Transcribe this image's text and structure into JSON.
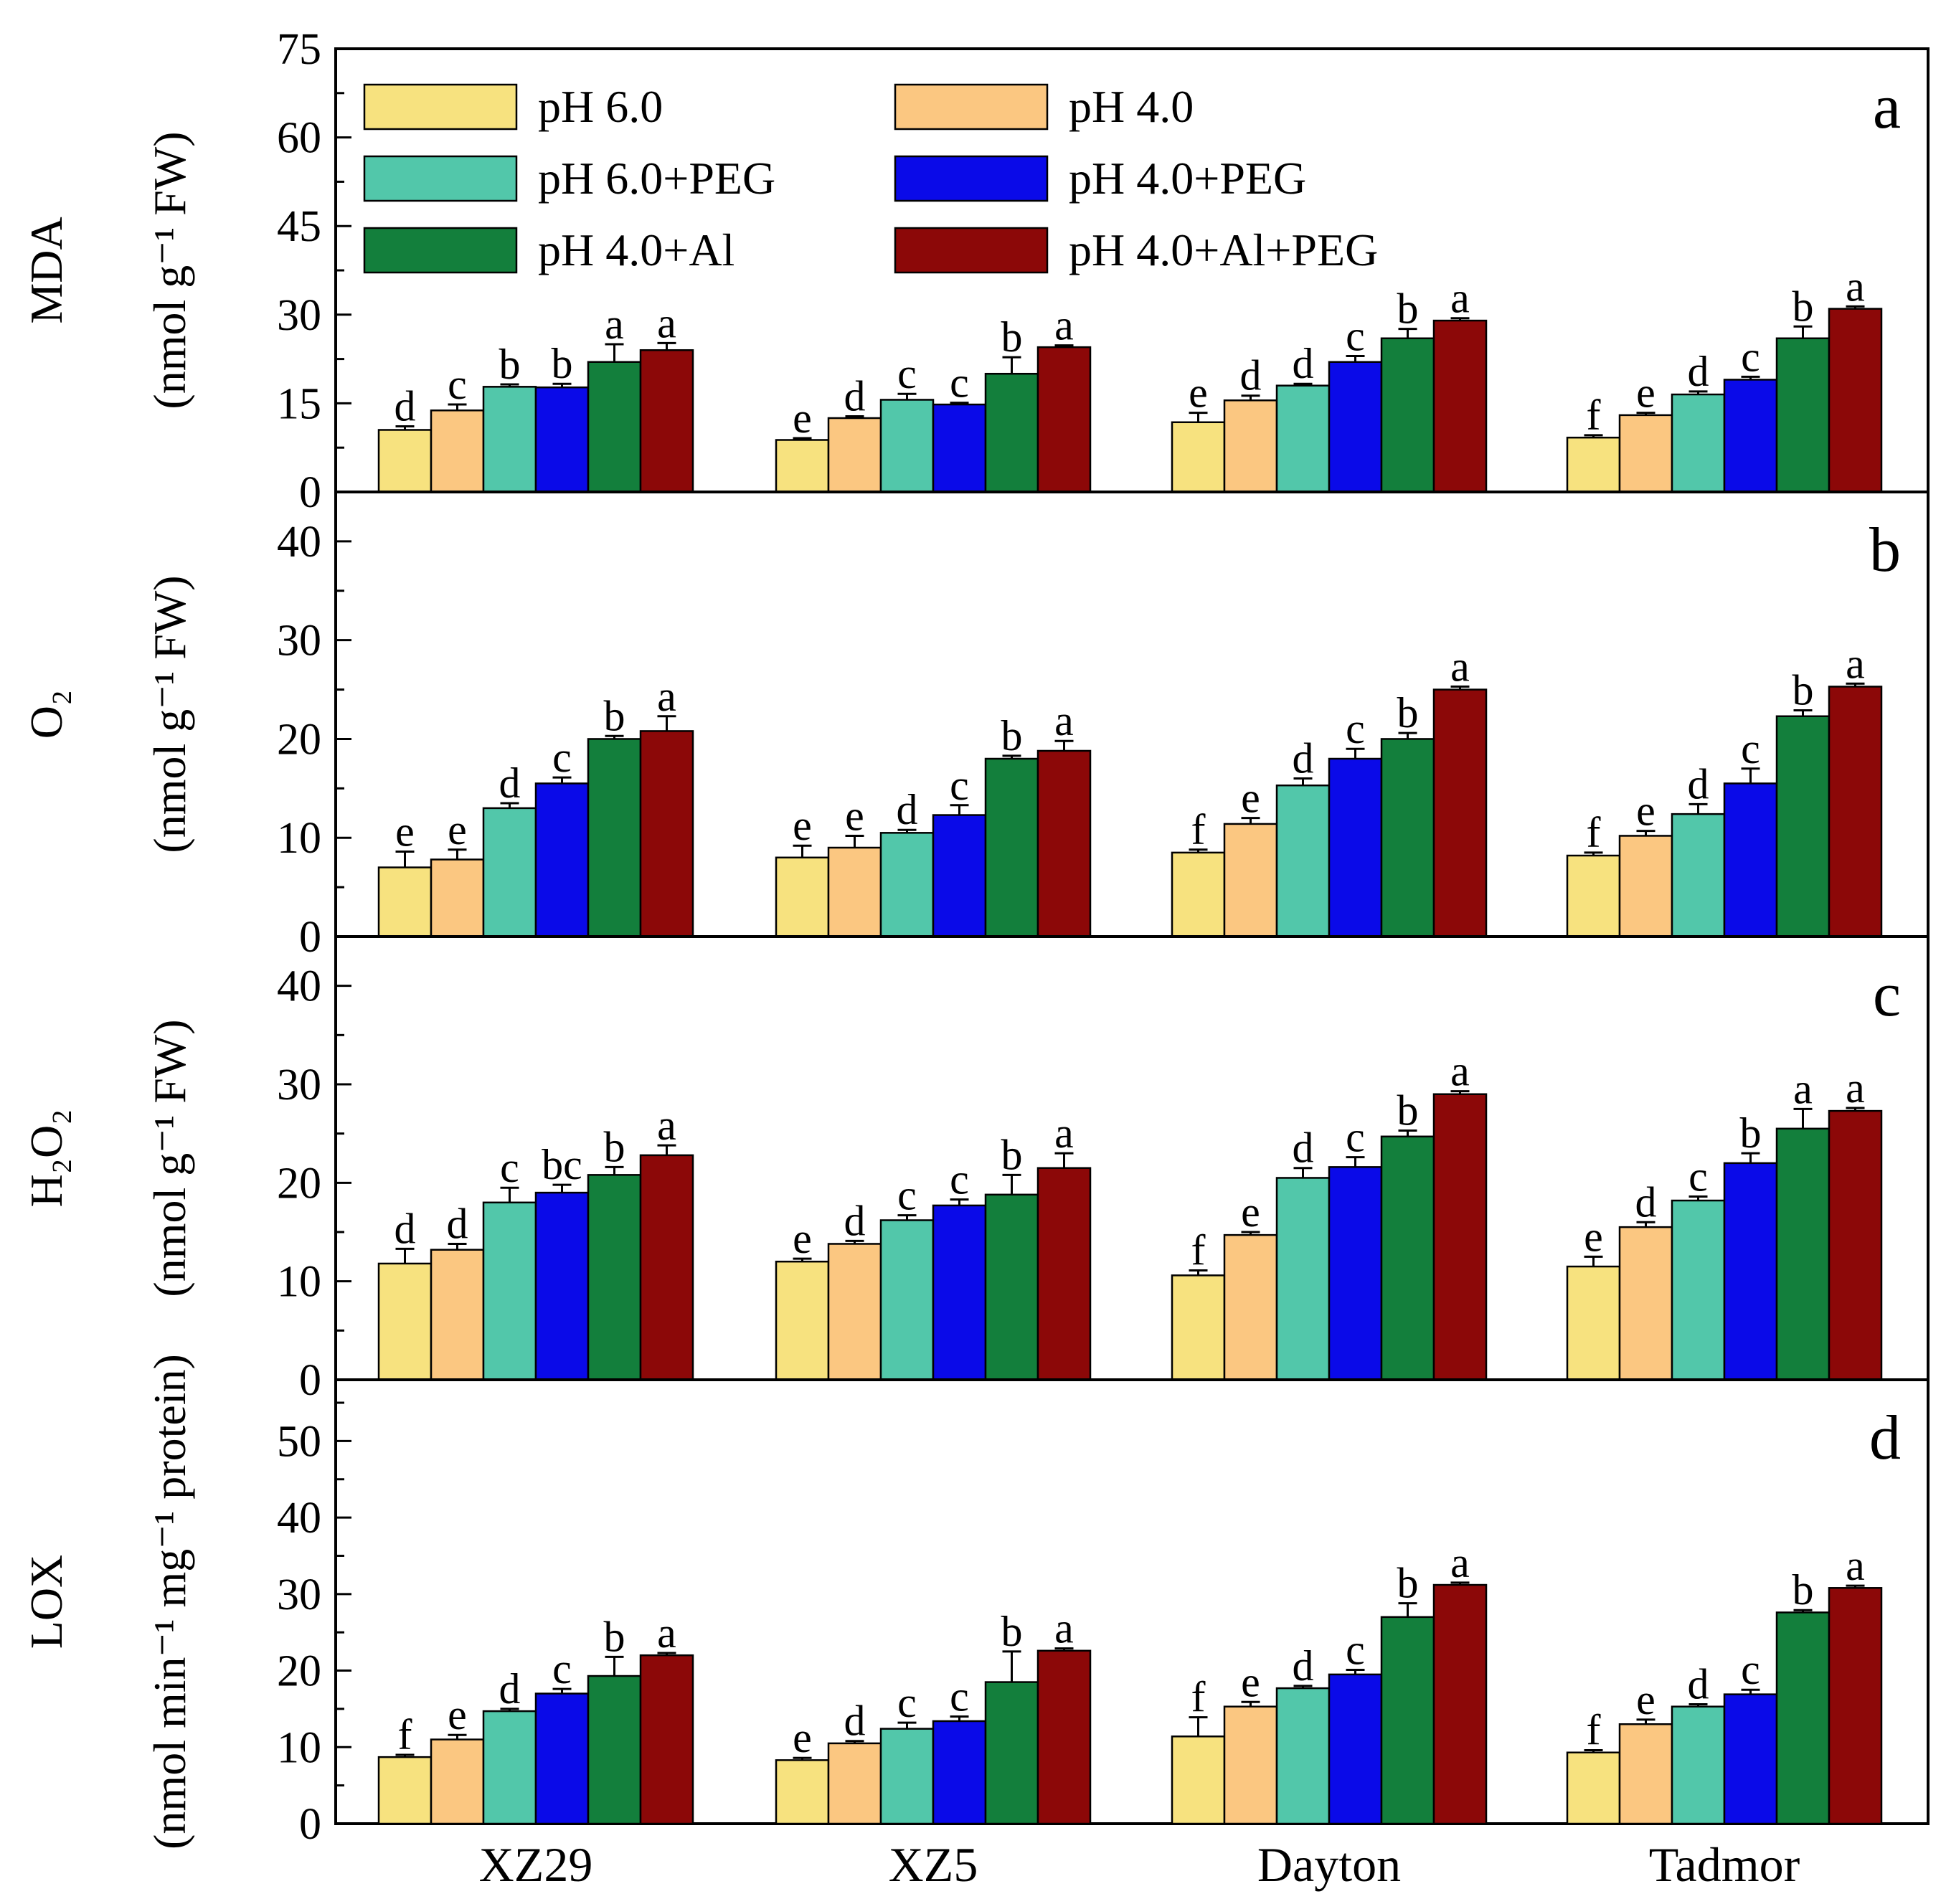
{
  "chart_data": {
    "type": "bar",
    "categories": [
      "XZ29",
      "XZ5",
      "Dayton",
      "Tadmor"
    ],
    "legend": [
      {
        "name": "pH 6.0",
        "color": "#f7e27f"
      },
      {
        "name": "pH 4.0",
        "color": "#fbc781"
      },
      {
        "name": "pH 6.0+PEG",
        "color": "#52c7aa"
      },
      {
        "name": "pH 4.0+PEG",
        "color": "#0a0ae8"
      },
      {
        "name": "pH 4.0+Al",
        "color": "#137f3c"
      },
      {
        "name": "pH 4.0+Al+PEG",
        "color": "#8c0808"
      }
    ],
    "panels": [
      {
        "letter": "a",
        "ylabel_line1": "MDA",
        "ylabel_line2": "(nmol g⁻¹ FW)",
        "ylim": [
          0,
          75
        ],
        "yticks": [
          0,
          15,
          30,
          45,
          60,
          75
        ],
        "series": [
          {
            "name": "pH 6.0",
            "values": [
              10.5,
              8.8,
              11.8,
              9.2
            ],
            "errors": [
              0.6,
              0.3,
              1.6,
              0.4
            ],
            "letters": [
              "d",
              "e",
              "e",
              "f"
            ]
          },
          {
            "name": "pH 4.0",
            "values": [
              13.8,
              12.5,
              15.5,
              13.0
            ],
            "errors": [
              1.0,
              0.3,
              0.8,
              0.4
            ],
            "letters": [
              "c",
              "d",
              "d",
              "e"
            ]
          },
          {
            "name": "pH 6.0+PEG",
            "values": [
              17.8,
              15.6,
              18.0,
              16.5
            ],
            "errors": [
              0.4,
              1.0,
              0.3,
              0.5
            ],
            "letters": [
              "b",
              "c",
              "d",
              "d"
            ]
          },
          {
            "name": "pH 4.0+PEG",
            "values": [
              17.7,
              14.8,
              22.0,
              19.0
            ],
            "errors": [
              0.6,
              0.3,
              1.0,
              0.5
            ],
            "letters": [
              "b",
              "c",
              "c",
              "c"
            ]
          },
          {
            "name": "pH 4.0+Al",
            "values": [
              22.0,
              20.0,
              26.0,
              26.0
            ],
            "errors": [
              3.0,
              2.8,
              1.6,
              2.0
            ],
            "letters": [
              "a",
              "b",
              "b",
              "b"
            ]
          },
          {
            "name": "pH 4.0+Al+PEG",
            "values": [
              24.0,
              24.5,
              29.0,
              31.0
            ],
            "errors": [
              1.2,
              0.3,
              0.4,
              0.4
            ],
            "letters": [
              "a",
              "a",
              "a",
              "a"
            ]
          }
        ]
      },
      {
        "letter": "b",
        "ylabel_line1": "O₂",
        "ylabel_line2": "(nmol g⁻¹ FW)",
        "ylim": [
          0,
          45
        ],
        "yticks": [
          0,
          10,
          20,
          30,
          40
        ],
        "series": [
          {
            "name": "pH 6.0",
            "values": [
              7.0,
              8.0,
              8.5,
              8.2
            ],
            "errors": [
              1.6,
              1.2,
              0.3,
              0.3
            ],
            "letters": [
              "e",
              "e",
              "f",
              "f"
            ]
          },
          {
            "name": "pH 4.0",
            "values": [
              7.8,
              9.0,
              11.4,
              10.2
            ],
            "errors": [
              1.0,
              1.2,
              0.6,
              0.5
            ],
            "letters": [
              "e",
              "e",
              "e",
              "e"
            ]
          },
          {
            "name": "pH 6.0+PEG",
            "values": [
              13.0,
              10.5,
              15.3,
              12.4
            ],
            "errors": [
              0.5,
              0.3,
              0.7,
              1.0
            ],
            "letters": [
              "d",
              "d",
              "d",
              "d"
            ]
          },
          {
            "name": "pH 4.0+PEG",
            "values": [
              15.5,
              12.3,
              18.0,
              15.5
            ],
            "errors": [
              0.6,
              1.0,
              1.0,
              1.5
            ],
            "letters": [
              "c",
              "c",
              "c",
              "c"
            ]
          },
          {
            "name": "pH 4.0+Al",
            "values": [
              20.0,
              18.0,
              20.0,
              22.3
            ],
            "errors": [
              0.3,
              0.3,
              0.6,
              0.6
            ],
            "letters": [
              "b",
              "b",
              "b",
              "b"
            ]
          },
          {
            "name": "pH 4.0+Al+PEG",
            "values": [
              20.8,
              18.8,
              25.0,
              25.3
            ],
            "errors": [
              1.5,
              1.0,
              0.3,
              0.3
            ],
            "letters": [
              "a",
              "a",
              "a",
              "a"
            ]
          }
        ]
      },
      {
        "letter": "c",
        "ylabel_line1": "H₂O₂",
        "ylabel_line2": "(nmol g⁻¹ FW)",
        "ylim": [
          0,
          45
        ],
        "yticks": [
          0,
          10,
          20,
          30,
          40
        ],
        "series": [
          {
            "name": "pH 6.0",
            "values": [
              11.8,
              12.0,
              10.6,
              11.5
            ],
            "errors": [
              1.5,
              0.3,
              0.5,
              1.0
            ],
            "letters": [
              "d",
              "e",
              "f",
              "e"
            ]
          },
          {
            "name": "pH 4.0",
            "values": [
              13.2,
              13.8,
              14.7,
              15.5
            ],
            "errors": [
              0.6,
              0.3,
              0.3,
              0.5
            ],
            "letters": [
              "d",
              "d",
              "e",
              "d"
            ]
          },
          {
            "name": "pH 6.0+PEG",
            "values": [
              18.0,
              16.2,
              20.5,
              18.2
            ],
            "errors": [
              1.5,
              0.5,
              1.0,
              0.4
            ],
            "letters": [
              "c",
              "c",
              "d",
              "c"
            ]
          },
          {
            "name": "pH 4.0+PEG",
            "values": [
              19.0,
              17.7,
              21.6,
              22.0
            ],
            "errors": [
              0.8,
              0.6,
              1.0,
              1.0
            ],
            "letters": [
              "bc",
              "c",
              "c",
              "b"
            ]
          },
          {
            "name": "pH 4.0+Al",
            "values": [
              20.8,
              18.8,
              24.7,
              25.5
            ],
            "errors": [
              0.8,
              2.0,
              0.6,
              2.0
            ],
            "letters": [
              "b",
              "b",
              "b",
              "a"
            ]
          },
          {
            "name": "pH 4.0+Al+PEG",
            "values": [
              22.8,
              21.5,
              29.0,
              27.3
            ],
            "errors": [
              1.0,
              1.5,
              0.3,
              0.3
            ],
            "letters": [
              "a",
              "a",
              "a",
              "a"
            ]
          }
        ]
      },
      {
        "letter": "d",
        "ylabel_line1": "LOX",
        "ylabel_line2": "(nmol min⁻¹ mg⁻¹ protein)",
        "ylim": [
          0,
          58
        ],
        "yticks": [
          0,
          10,
          20,
          30,
          40,
          50
        ],
        "series": [
          {
            "name": "pH 6.0",
            "values": [
              8.7,
              8.3,
              11.4,
              9.3
            ],
            "errors": [
              0.3,
              0.3,
              2.5,
              0.3
            ],
            "letters": [
              "f",
              "e",
              "f",
              "f"
            ]
          },
          {
            "name": "pH 4.0",
            "values": [
              11.0,
              10.5,
              15.3,
              13.0
            ],
            "errors": [
              0.6,
              0.3,
              0.6,
              0.6
            ],
            "letters": [
              "e",
              "d",
              "e",
              "e"
            ]
          },
          {
            "name": "pH 6.0+PEG",
            "values": [
              14.7,
              12.4,
              17.7,
              15.3
            ],
            "errors": [
              0.3,
              0.8,
              0.3,
              0.3
            ],
            "letters": [
              "d",
              "c",
              "d",
              "d"
            ]
          },
          {
            "name": "pH 4.0+PEG",
            "values": [
              17.0,
              13.4,
              19.5,
              16.9
            ],
            "errors": [
              0.6,
              0.6,
              0.6,
              0.6
            ],
            "letters": [
              "c",
              "c",
              "c",
              "c"
            ]
          },
          {
            "name": "pH 4.0+Al",
            "values": [
              19.3,
              18.5,
              27.0,
              27.6
            ],
            "errors": [
              2.5,
              4.0,
              1.8,
              0.3
            ],
            "letters": [
              "b",
              "b",
              "b",
              "b"
            ]
          },
          {
            "name": "pH 4.0+Al+PEG",
            "values": [
              22.0,
              22.6,
              31.2,
              30.8
            ],
            "errors": [
              0.3,
              0.3,
              0.3,
              0.3
            ],
            "letters": [
              "a",
              "a",
              "a",
              "a"
            ]
          }
        ]
      }
    ]
  }
}
